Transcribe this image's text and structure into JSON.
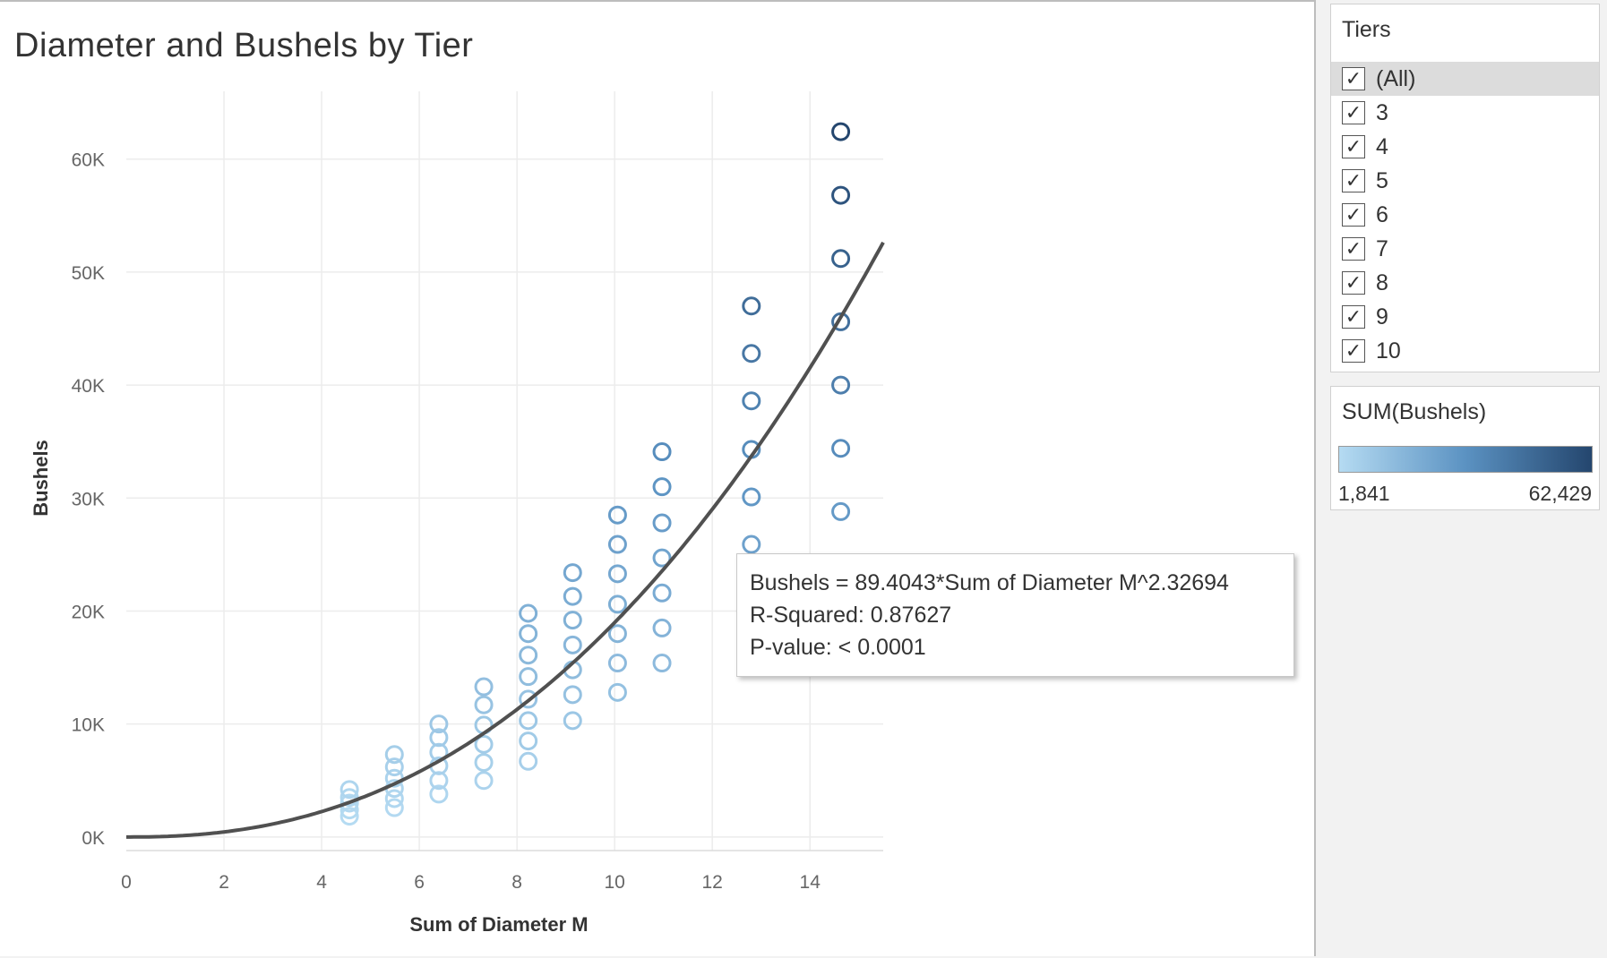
{
  "chart_data": {
    "type": "scatter",
    "title": "Diameter and Bushels by Tier",
    "xlabel": "Sum of Diameter M",
    "ylabel": "Bushels",
    "xlim": [
      0,
      15.5
    ],
    "ylim": [
      -1200,
      66000
    ],
    "x_ticks": [
      0,
      2,
      4,
      6,
      8,
      10,
      12,
      14
    ],
    "x_tick_labels": [
      "0",
      "2",
      "4",
      "6",
      "8",
      "10",
      "12",
      "14"
    ],
    "y_ticks": [
      0,
      10000,
      20000,
      30000,
      40000,
      50000,
      60000
    ],
    "y_tick_labels": [
      "0K",
      "10K",
      "20K",
      "30K",
      "40K",
      "50K",
      "60K"
    ],
    "grid": true,
    "marker": "open-circle",
    "color_scale": {
      "from": "#b5dbf2",
      "mid": "#5b92c2",
      "to": "#24466e",
      "min": 1841,
      "max": 62429
    },
    "trend_line": {
      "type": "power",
      "a": 89.4043,
      "b": 2.32694,
      "color": "#505050"
    },
    "points": [
      {
        "x": 4.57,
        "y": 1841
      },
      {
        "x": 4.57,
        "y": 2400
      },
      {
        "x": 4.57,
        "y": 3000
      },
      {
        "x": 4.57,
        "y": 3500
      },
      {
        "x": 4.57,
        "y": 4200
      },
      {
        "x": 5.49,
        "y": 2600
      },
      {
        "x": 5.49,
        "y": 3400
      },
      {
        "x": 5.49,
        "y": 4300
      },
      {
        "x": 5.49,
        "y": 5200
      },
      {
        "x": 5.49,
        "y": 6200
      },
      {
        "x": 5.49,
        "y": 7300
      },
      {
        "x": 6.4,
        "y": 3800
      },
      {
        "x": 6.4,
        "y": 5000
      },
      {
        "x": 6.4,
        "y": 6300
      },
      {
        "x": 6.4,
        "y": 7500
      },
      {
        "x": 6.4,
        "y": 8800
      },
      {
        "x": 6.4,
        "y": 10000
      },
      {
        "x": 7.32,
        "y": 5000
      },
      {
        "x": 7.32,
        "y": 6600
      },
      {
        "x": 7.32,
        "y": 8200
      },
      {
        "x": 7.32,
        "y": 9900
      },
      {
        "x": 7.32,
        "y": 11700
      },
      {
        "x": 7.32,
        "y": 13300
      },
      {
        "x": 8.23,
        "y": 6700
      },
      {
        "x": 8.23,
        "y": 8500
      },
      {
        "x": 8.23,
        "y": 10300
      },
      {
        "x": 8.23,
        "y": 12200
      },
      {
        "x": 8.23,
        "y": 14200
      },
      {
        "x": 8.23,
        "y": 16100
      },
      {
        "x": 8.23,
        "y": 18000
      },
      {
        "x": 8.23,
        "y": 19800
      },
      {
        "x": 9.14,
        "y": 10300
      },
      {
        "x": 9.14,
        "y": 12600
      },
      {
        "x": 9.14,
        "y": 14800
      },
      {
        "x": 9.14,
        "y": 17000
      },
      {
        "x": 9.14,
        "y": 19200
      },
      {
        "x": 9.14,
        "y": 21300
      },
      {
        "x": 9.14,
        "y": 23400
      },
      {
        "x": 10.06,
        "y": 12800
      },
      {
        "x": 10.06,
        "y": 15400
      },
      {
        "x": 10.06,
        "y": 18000
      },
      {
        "x": 10.06,
        "y": 20600
      },
      {
        "x": 10.06,
        "y": 23300
      },
      {
        "x": 10.06,
        "y": 25900
      },
      {
        "x": 10.06,
        "y": 28500
      },
      {
        "x": 10.97,
        "y": 15400
      },
      {
        "x": 10.97,
        "y": 18500
      },
      {
        "x": 10.97,
        "y": 21600
      },
      {
        "x": 10.97,
        "y": 24700
      },
      {
        "x": 10.97,
        "y": 27800
      },
      {
        "x": 10.97,
        "y": 31000
      },
      {
        "x": 10.97,
        "y": 34100
      },
      {
        "x": 12.8,
        "y": 25900
      },
      {
        "x": 12.8,
        "y": 30100
      },
      {
        "x": 12.8,
        "y": 34300
      },
      {
        "x": 12.8,
        "y": 38600
      },
      {
        "x": 12.8,
        "y": 42800
      },
      {
        "x": 12.8,
        "y": 47000
      },
      {
        "x": 14.63,
        "y": 28800
      },
      {
        "x": 14.63,
        "y": 34400
      },
      {
        "x": 14.63,
        "y": 40000
      },
      {
        "x": 14.63,
        "y": 45600
      },
      {
        "x": 14.63,
        "y": 51200
      },
      {
        "x": 14.63,
        "y": 56800
      },
      {
        "x": 14.63,
        "y": 62429
      }
    ]
  },
  "tooltip": {
    "equation": "Bushels = 89.4043*Sum of Diameter M^2.32694",
    "r_squared": "R-Squared: 0.87627",
    "p_value": "P-value: < 0.0001"
  },
  "filter": {
    "title": "Tiers",
    "check_glyph": "✓",
    "items": [
      {
        "label": "(All)",
        "checked": true
      },
      {
        "label": "3",
        "checked": true
      },
      {
        "label": "4",
        "checked": true
      },
      {
        "label": "5",
        "checked": true
      },
      {
        "label": "6",
        "checked": true
      },
      {
        "label": "7",
        "checked": true
      },
      {
        "label": "8",
        "checked": true
      },
      {
        "label": "9",
        "checked": true
      },
      {
        "label": "10",
        "checked": true
      }
    ]
  },
  "legend": {
    "title": "SUM(Bushels)",
    "min_label": "1,841",
    "max_label": "62,429"
  }
}
